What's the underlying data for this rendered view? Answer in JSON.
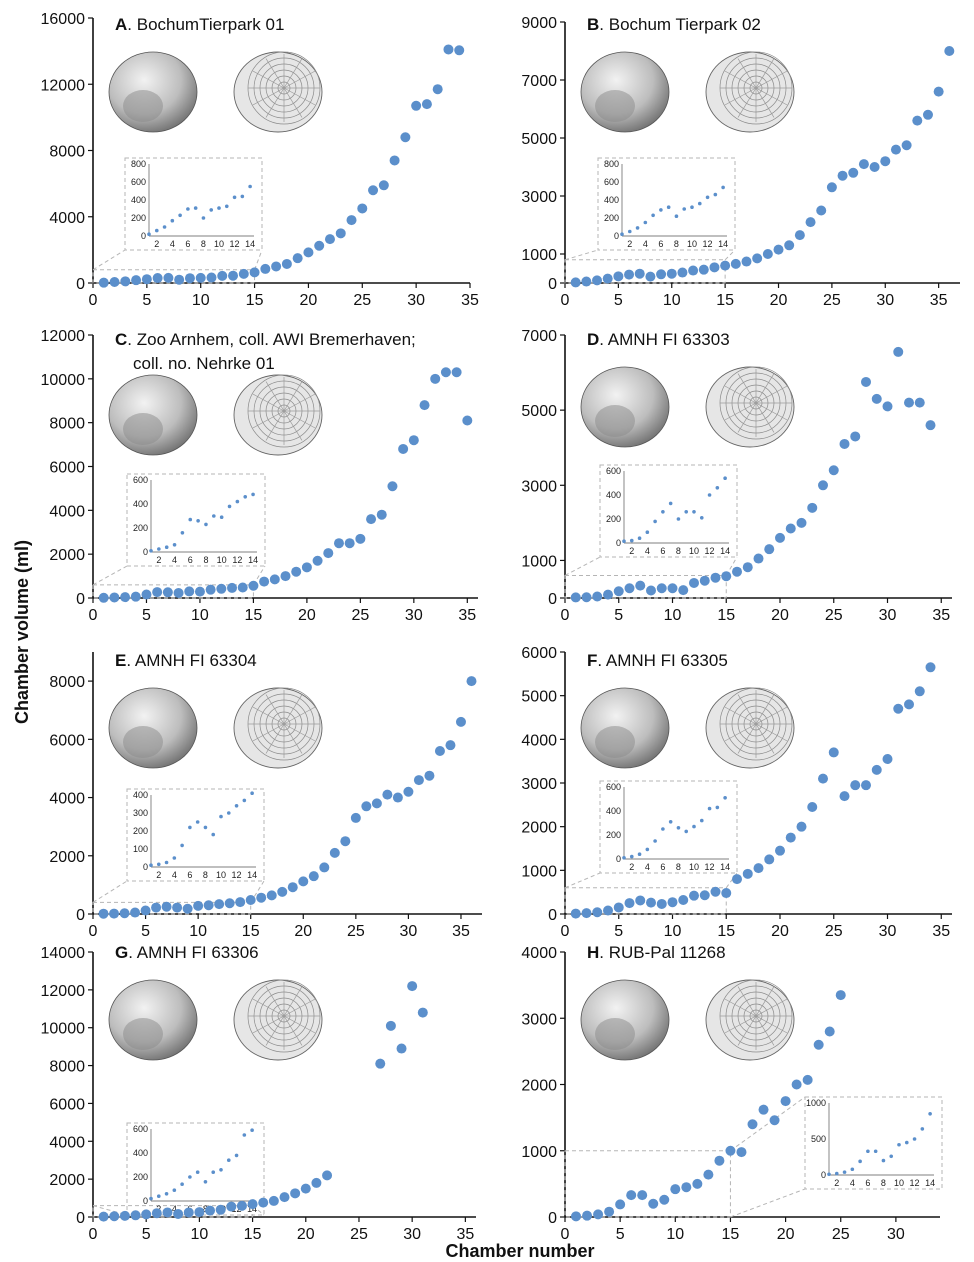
{
  "figure": {
    "ylabel": "Chamber volume (ml)",
    "xlabel": "Chamber number"
  },
  "colors": {
    "marker": "#5b8fcb",
    "inset_frame": "#b5b5b5"
  },
  "chart_data": [
    {
      "type": "scatter",
      "letter": "A",
      "title": ". BochumTierpark 01",
      "xlim": [
        0,
        35
      ],
      "ylim": [
        0,
        16000
      ],
      "xticks": [
        "0",
        "5",
        "10",
        "15",
        "20",
        "25",
        "30",
        "35"
      ],
      "yticks": [
        "0",
        "4000",
        "8000",
        "12000",
        "16000"
      ],
      "x": [
        1,
        2,
        3,
        4,
        5,
        6,
        7,
        8,
        9,
        10,
        11,
        12,
        13,
        14,
        15,
        16,
        17,
        18,
        19,
        20,
        21,
        22,
        23,
        24,
        25,
        26,
        27,
        28,
        29,
        30,
        31,
        32,
        33,
        34
      ],
      "y": [
        20,
        60,
        100,
        170,
        230,
        300,
        310,
        200,
        290,
        310,
        330,
        430,
        440,
        550,
        640,
        850,
        1000,
        1150,
        1500,
        1850,
        2250,
        2650,
        3000,
        3800,
        4500,
        5600,
        5900,
        7400,
        8800,
        10700,
        10800,
        11700,
        14100,
        14050
      ],
      "inset": {
        "xticks": [
          "2",
          "4",
          "6",
          "8",
          "10",
          "12",
          "14"
        ],
        "yticks": [
          "0",
          "200",
          "400",
          "600",
          "800"
        ],
        "xlim": [
          1,
          14.5
        ],
        "ylim": [
          0,
          800
        ],
        "x": [
          1,
          2,
          3,
          4,
          5,
          6,
          7,
          8,
          9,
          10,
          11,
          12,
          13,
          14
        ],
        "y": [
          20,
          60,
          100,
          170,
          230,
          300,
          310,
          200,
          290,
          310,
          330,
          430,
          440,
          550
        ]
      }
    },
    {
      "type": "scatter",
      "letter": "B",
      "title": ". Bochum Tierpark 02",
      "xlim": [
        0,
        37
      ],
      "ylim": [
        0,
        9000
      ],
      "xticks": [
        "0",
        "5",
        "10",
        "15",
        "20",
        "25",
        "30",
        "35"
      ],
      "yticks": [
        "0",
        "1000",
        "3000",
        "5000",
        "7000",
        "9000"
      ],
      "x": [
        1,
        2,
        3,
        4,
        5,
        6,
        7,
        8,
        9,
        10,
        11,
        12,
        13,
        14,
        15,
        16,
        17,
        18,
        19,
        20,
        21,
        22,
        23,
        24,
        25,
        26,
        27,
        28,
        29,
        30,
        31,
        32,
        33,
        34,
        35,
        36
      ],
      "y": [
        20,
        50,
        90,
        150,
        230,
        290,
        320,
        220,
        300,
        320,
        360,
        430,
        460,
        540,
        600,
        660,
        740,
        850,
        1000,
        1150,
        1300,
        1650,
        2100,
        2500,
        3300,
        3700,
        3800,
        4100,
        4000,
        4200,
        4600,
        4750,
        5600,
        5800,
        6600,
        8000
      ],
      "inset": {
        "xticks": [
          "2",
          "4",
          "6",
          "8",
          "10",
          "12",
          "14"
        ],
        "yticks": [
          "0",
          "200",
          "400",
          "600",
          "800"
        ],
        "xlim": [
          1,
          14.5
        ],
        "ylim": [
          0,
          800
        ],
        "x": [
          1,
          2,
          3,
          4,
          5,
          6,
          7,
          8,
          9,
          10,
          11,
          12,
          13,
          14
        ],
        "y": [
          20,
          50,
          90,
          150,
          230,
          290,
          320,
          220,
          300,
          320,
          360,
          430,
          460,
          540
        ]
      }
    },
    {
      "type": "scatter",
      "letter": "C",
      "title": ". Zoo Arnhem, coll. AWI Bremerhaven;",
      "title2": "coll. no. Nehrke 01",
      "xlim": [
        0,
        36
      ],
      "ylim": [
        0,
        12000
      ],
      "xticks": [
        "0",
        "5",
        "10",
        "15",
        "20",
        "25",
        "30",
        "35"
      ],
      "yticks": [
        "0",
        "2000",
        "4000",
        "6000",
        "8000",
        "10000",
        "12000"
      ],
      "x": [
        1,
        2,
        3,
        4,
        5,
        6,
        7,
        8,
        9,
        10,
        11,
        12,
        13,
        14,
        15,
        16,
        17,
        18,
        19,
        20,
        21,
        22,
        23,
        24,
        25,
        26,
        27,
        28,
        29,
        30,
        31,
        32,
        33,
        34,
        35
      ],
      "y": [
        10,
        25,
        40,
        60,
        160,
        270,
        260,
        230,
        300,
        290,
        380,
        420,
        460,
        480,
        560,
        750,
        850,
        1000,
        1200,
        1400,
        1700,
        2050,
        2500,
        2500,
        2700,
        3600,
        3800,
        5100,
        6800,
        7200,
        8800,
        10000,
        10300,
        10300,
        8100
      ],
      "inset": {
        "xticks": [
          "2",
          "4",
          "6",
          "8",
          "10",
          "12",
          "14"
        ],
        "yticks": [
          "0",
          "200",
          "400",
          "600"
        ],
        "xlim": [
          1,
          14.5
        ],
        "ylim": [
          0,
          600
        ],
        "x": [
          1,
          2,
          3,
          4,
          5,
          6,
          7,
          8,
          9,
          10,
          11,
          12,
          13,
          14
        ],
        "y": [
          10,
          25,
          40,
          60,
          160,
          270,
          260,
          230,
          300,
          290,
          380,
          420,
          460,
          480
        ]
      }
    },
    {
      "type": "scatter",
      "letter": "D",
      "title": ". AMNH FI 63303",
      "xlim": [
        0,
        36
      ],
      "ylim": [
        0,
        7000
      ],
      "xticks": [
        "0",
        "5",
        "10",
        "15",
        "20",
        "25",
        "30",
        "35"
      ],
      "yticks": [
        "0",
        "1000",
        "3000",
        "5000",
        "7000"
      ],
      "x": [
        1,
        2,
        3,
        4,
        5,
        6,
        7,
        8,
        9,
        10,
        11,
        12,
        13,
        14,
        15,
        16,
        17,
        18,
        19,
        20,
        21,
        22,
        23,
        24,
        25,
        26,
        27,
        28,
        29,
        30,
        31,
        32,
        33,
        34
      ],
      "y": [
        15,
        20,
        40,
        90,
        180,
        260,
        330,
        200,
        260,
        260,
        210,
        400,
        460,
        540,
        580,
        700,
        820,
        1050,
        1300,
        1600,
        1850,
        2000,
        2400,
        3000,
        3400,
        4100,
        4300,
        5750,
        5300,
        5100,
        6550,
        5200,
        5200,
        4600
      ],
      "inset": {
        "xticks": [
          "2",
          "4",
          "6",
          "8",
          "10",
          "12",
          "14"
        ],
        "yticks": [
          "0",
          "200",
          "400",
          "600"
        ],
        "xlim": [
          1,
          14.5
        ],
        "ylim": [
          0,
          600
        ],
        "x": [
          1,
          2,
          3,
          4,
          5,
          6,
          7,
          8,
          9,
          10,
          11,
          12,
          13,
          14
        ],
        "y": [
          15,
          20,
          40,
          90,
          180,
          260,
          330,
          200,
          260,
          260,
          210,
          400,
          460,
          540
        ]
      }
    },
    {
      "type": "scatter",
      "letter": "E",
      "title": ". AMNH FI 63304",
      "xlim": [
        0,
        37
      ],
      "ylim": [
        0,
        9000
      ],
      "xticks": [
        "0",
        "5",
        "10",
        "15",
        "20",
        "25",
        "30",
        "35"
      ],
      "yticks": [
        "0",
        "2000",
        "4000",
        "6000",
        "8000"
      ],
      "x": [
        1,
        2,
        3,
        4,
        5,
        6,
        7,
        8,
        9,
        10,
        11,
        12,
        13,
        14,
        15,
        16,
        17,
        18,
        19,
        20,
        21,
        22,
        23,
        24,
        25,
        26,
        27,
        28,
        29,
        30,
        31,
        32,
        33,
        34,
        35,
        36
      ],
      "y": [
        10,
        15,
        25,
        50,
        120,
        220,
        250,
        220,
        180,
        280,
        300,
        340,
        370,
        410,
        480,
        560,
        640,
        760,
        920,
        1120,
        1300,
        1600,
        2100,
        2500,
        3300,
        3700,
        3800,
        4100,
        4000,
        4200,
        4600,
        4750,
        5600,
        5800,
        6600,
        8000
      ],
      "inset": {
        "xticks": [
          "2",
          "4",
          "6",
          "8",
          "10",
          "12",
          "14"
        ],
        "yticks": [
          "0",
          "100",
          "200",
          "300",
          "400"
        ],
        "xlim": [
          1,
          14.5
        ],
        "ylim": [
          0,
          400
        ],
        "x": [
          1,
          2,
          3,
          4,
          5,
          6,
          7,
          8,
          9,
          10,
          11,
          12,
          13,
          14
        ],
        "y": [
          10,
          15,
          25,
          50,
          120,
          220,
          250,
          220,
          180,
          280,
          300,
          340,
          370,
          410
        ]
      }
    },
    {
      "type": "scatter",
      "letter": "F",
      "title": ". AMNH FI 63305",
      "xlim": [
        0,
        36
      ],
      "ylim": [
        0,
        6000
      ],
      "xticks": [
        "0",
        "5",
        "10",
        "15",
        "20",
        "25",
        "30",
        "35"
      ],
      "yticks": [
        "0",
        "1000",
        "2000",
        "3000",
        "4000",
        "5000",
        "6000"
      ],
      "x": [
        1,
        2,
        3,
        4,
        5,
        6,
        7,
        8,
        9,
        10,
        11,
        12,
        13,
        14,
        15,
        16,
        17,
        18,
        19,
        20,
        21,
        22,
        23,
        24,
        25,
        26,
        27,
        28,
        29,
        30,
        31,
        32,
        33,
        34
      ],
      "y": [
        10,
        20,
        40,
        80,
        150,
        250,
        310,
        260,
        230,
        270,
        320,
        420,
        430,
        510,
        480,
        800,
        920,
        1050,
        1250,
        1450,
        1750,
        2000,
        2450,
        3100,
        3700,
        2700,
        2950,
        2950,
        3300,
        3550,
        4700,
        4800,
        5100,
        5650
      ],
      "inset": {
        "xticks": [
          "2",
          "4",
          "6",
          "8",
          "10",
          "12",
          "14"
        ],
        "yticks": [
          "0",
          "200",
          "400",
          "600"
        ],
        "xlim": [
          1,
          14.5
        ],
        "ylim": [
          0,
          600
        ],
        "x": [
          1,
          2,
          3,
          4,
          5,
          6,
          7,
          8,
          9,
          10,
          11,
          12,
          13,
          14
        ],
        "y": [
          10,
          20,
          40,
          80,
          150,
          250,
          310,
          260,
          230,
          270,
          320,
          420,
          430,
          510
        ]
      }
    },
    {
      "type": "scatter",
      "letter": "G",
      "title": ". AMNH FI 63306",
      "xlim": [
        0,
        36
      ],
      "ylim": [
        0,
        14000
      ],
      "xticks": [
        "0",
        "5",
        "10",
        "15",
        "20",
        "25",
        "30",
        "35"
      ],
      "yticks": [
        "0",
        "2000",
        "4000",
        "6000",
        "8000",
        "10000",
        "12000",
        "14000"
      ],
      "x": [
        1,
        2,
        3,
        4,
        5,
        6,
        7,
        8,
        9,
        10,
        11,
        12,
        13,
        14,
        15,
        16,
        17,
        18,
        19,
        20,
        21,
        22,
        27,
        28,
        29,
        30,
        31
      ],
      "y": [
        20,
        40,
        60,
        90,
        140,
        200,
        240,
        160,
        240,
        260,
        340,
        380,
        550,
        590,
        680,
        760,
        850,
        1050,
        1250,
        1500,
        1800,
        2200,
        8100,
        10100,
        8900,
        12200,
        10800
      ],
      "inset": {
        "xticks": [
          "2",
          "4",
          "6",
          "8",
          "10",
          "12",
          "14"
        ],
        "yticks": [
          "0",
          "200",
          "400",
          "600"
        ],
        "xlim": [
          1,
          14.5
        ],
        "ylim": [
          0,
          600
        ],
        "x": [
          1,
          2,
          3,
          4,
          5,
          6,
          7,
          8,
          9,
          10,
          11,
          12,
          13,
          14
        ],
        "y": [
          20,
          40,
          60,
          90,
          140,
          200,
          240,
          160,
          240,
          260,
          340,
          380,
          550,
          590
        ]
      }
    },
    {
      "type": "scatter",
      "letter": "H",
      "title": ". RUB-Pal 11268",
      "xlim": [
        0,
        34
      ],
      "ylim": [
        0,
        4000
      ],
      "xticks": [
        "0",
        "5",
        "10",
        "15",
        "20",
        "25",
        "30"
      ],
      "yticks": [
        "0",
        "1000",
        "2000",
        "3000",
        "4000"
      ],
      "x": [
        1,
        2,
        3,
        4,
        5,
        6,
        7,
        8,
        9,
        10,
        11,
        12,
        13,
        14,
        15,
        16,
        17,
        18,
        19,
        20,
        21,
        22,
        23,
        24,
        25
      ],
      "y": [
        10,
        20,
        40,
        80,
        190,
        330,
        330,
        200,
        260,
        420,
        450,
        500,
        640,
        850,
        1000,
        980,
        1400,
        1620,
        1460,
        1750,
        2000,
        2070,
        2600,
        2800,
        3350
      ],
      "inset": {
        "xticks": [
          "2",
          "4",
          "6",
          "8",
          "10",
          "12",
          "14"
        ],
        "yticks": [
          "0",
          "500",
          "1000"
        ],
        "xlim": [
          1,
          14.5
        ],
        "ylim": [
          0,
          1000
        ],
        "x": [
          1,
          2,
          3,
          4,
          5,
          6,
          7,
          8,
          9,
          10,
          11,
          12,
          13,
          14
        ],
        "y": [
          10,
          20,
          40,
          80,
          190,
          330,
          330,
          200,
          260,
          420,
          450,
          500,
          640,
          850
        ]
      }
    }
  ]
}
